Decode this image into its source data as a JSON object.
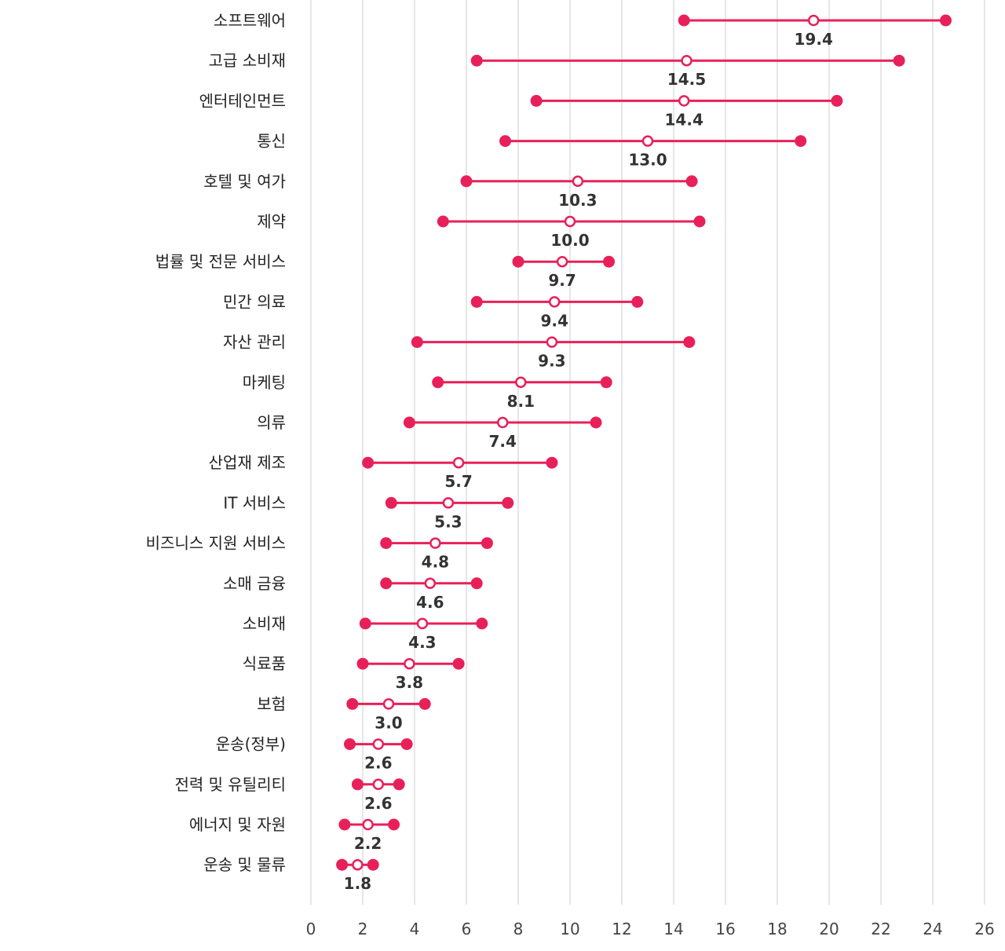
{
  "chart_data": {
    "type": "dumbbell",
    "colors": {
      "series": "#e8205a",
      "grid": "#cccccc",
      "text": "#222222"
    },
    "xlim": [
      0,
      26
    ],
    "xticks": [
      "0",
      "2",
      "4",
      "6",
      "8",
      "10",
      "12",
      "14",
      "16",
      "18",
      "20",
      "22",
      "24",
      "26"
    ],
    "grid": "vertical",
    "rows": [
      {
        "category": "소프트웨어",
        "low": 14.4,
        "mid": 19.4,
        "high": 24.5,
        "label": "19.4"
      },
      {
        "category": "고급 소비재",
        "low": 6.4,
        "mid": 14.5,
        "high": 22.7,
        "label": "14.5"
      },
      {
        "category": "엔터테인먼트",
        "low": 8.7,
        "mid": 14.4,
        "high": 20.3,
        "label": "14.4"
      },
      {
        "category": "통신",
        "low": 7.5,
        "mid": 13.0,
        "high": 18.9,
        "label": "13.0"
      },
      {
        "category": "호텔 및 여가",
        "low": 6.0,
        "mid": 10.3,
        "high": 14.7,
        "label": "10.3"
      },
      {
        "category": "제약",
        "low": 5.1,
        "mid": 10.0,
        "high": 15.0,
        "label": "10.0"
      },
      {
        "category": "법률 및 전문 서비스",
        "low": 8.0,
        "mid": 9.7,
        "high": 11.5,
        "label": "9.7"
      },
      {
        "category": "민간 의료",
        "low": 6.4,
        "mid": 9.4,
        "high": 12.6,
        "label": "9.4"
      },
      {
        "category": "자산 관리",
        "low": 4.1,
        "mid": 9.3,
        "high": 14.6,
        "label": "9.3"
      },
      {
        "category": "마케팅",
        "low": 4.9,
        "mid": 8.1,
        "high": 11.4,
        "label": "8.1"
      },
      {
        "category": "의류",
        "low": 3.8,
        "mid": 7.4,
        "high": 11.0,
        "label": "7.4"
      },
      {
        "category": "산업재 제조",
        "low": 2.2,
        "mid": 5.7,
        "high": 9.3,
        "label": "5.7"
      },
      {
        "category": "IT 서비스",
        "low": 3.1,
        "mid": 5.3,
        "high": 7.6,
        "label": "5.3"
      },
      {
        "category": "비즈니스 지원 서비스",
        "low": 2.9,
        "mid": 4.8,
        "high": 6.8,
        "label": "4.8"
      },
      {
        "category": "소매 금융",
        "low": 2.9,
        "mid": 4.6,
        "high": 6.4,
        "label": "4.6"
      },
      {
        "category": "소비재",
        "low": 2.1,
        "mid": 4.3,
        "high": 6.6,
        "label": "4.3"
      },
      {
        "category": "식료품",
        "low": 2.0,
        "mid": 3.8,
        "high": 5.7,
        "label": "3.8"
      },
      {
        "category": "보험",
        "low": 1.6,
        "mid": 3.0,
        "high": 4.4,
        "label": "3.0"
      },
      {
        "category": "운송(정부)",
        "low": 1.5,
        "mid": 2.6,
        "high": 3.7,
        "label": "2.6"
      },
      {
        "category": "전력 및 유틸리티",
        "low": 1.8,
        "mid": 2.6,
        "high": 3.4,
        "label": "2.6"
      },
      {
        "category": "에너지 및 자원",
        "low": 1.3,
        "mid": 2.2,
        "high": 3.2,
        "label": "2.2"
      },
      {
        "category": "운송 및 물류",
        "low": 1.2,
        "mid": 1.8,
        "high": 2.4,
        "label": "1.8"
      }
    ]
  }
}
